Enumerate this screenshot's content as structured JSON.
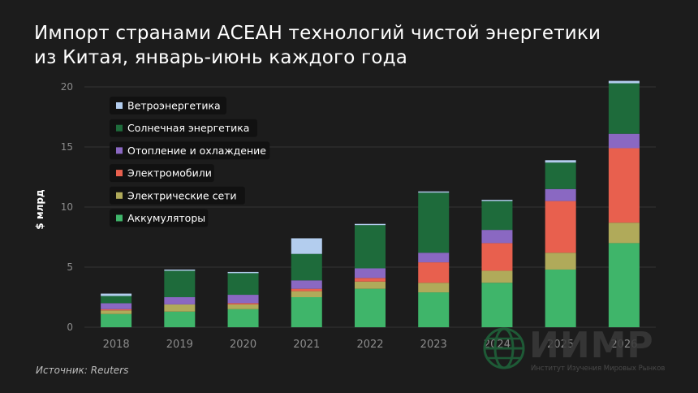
{
  "title_line1": "Импорт странами АСЕАН технологий чистой энергетики",
  "title_line2": "из Китая, январь-июнь каждого года",
  "source": "Источник: Reuters",
  "logo": {
    "text": "ИИМР",
    "subtitle": "Институт Изучения Мировых Рынков"
  },
  "chart_data": {
    "type": "bar",
    "stacked": true,
    "categories": [
      "2018",
      "2019",
      "2020",
      "2021",
      "2022",
      "2023",
      "2024",
      "2025",
      "2026"
    ],
    "ylabel": "$ млрд",
    "ylim": [
      0,
      20
    ],
    "yticks": [
      0,
      5,
      10,
      15,
      20
    ],
    "grid": true,
    "legend_position": "top-left",
    "series": [
      {
        "name": "Аккумуляторы",
        "color": "#3fb56a",
        "values": [
          1.1,
          1.3,
          1.5,
          2.5,
          3.2,
          2.9,
          3.7,
          4.8,
          7.0
        ]
      },
      {
        "name": "Электрические сети",
        "color": "#b0aa5a",
        "values": [
          0.3,
          0.6,
          0.4,
          0.5,
          0.6,
          0.8,
          1.0,
          1.4,
          1.7
        ]
      },
      {
        "name": "Электромобили",
        "color": "#e8604e",
        "values": [
          0.1,
          0.0,
          0.1,
          0.2,
          0.3,
          1.7,
          2.3,
          4.3,
          6.2
        ]
      },
      {
        "name": "Отопление и охлаждение",
        "color": "#8a68c2",
        "values": [
          0.5,
          0.6,
          0.7,
          0.7,
          0.8,
          0.8,
          1.1,
          1.0,
          1.2
        ]
      },
      {
        "name": "Солнечная энергетика",
        "color": "#1e6b3b",
        "values": [
          0.6,
          2.2,
          1.8,
          2.2,
          3.6,
          5.0,
          2.4,
          2.2,
          4.2
        ]
      },
      {
        "name": "Ветроэнергетика",
        "color": "#b3cdee",
        "values": [
          0.2,
          0.1,
          0.1,
          1.3,
          0.1,
          0.1,
          0.1,
          0.2,
          0.2
        ]
      }
    ]
  }
}
